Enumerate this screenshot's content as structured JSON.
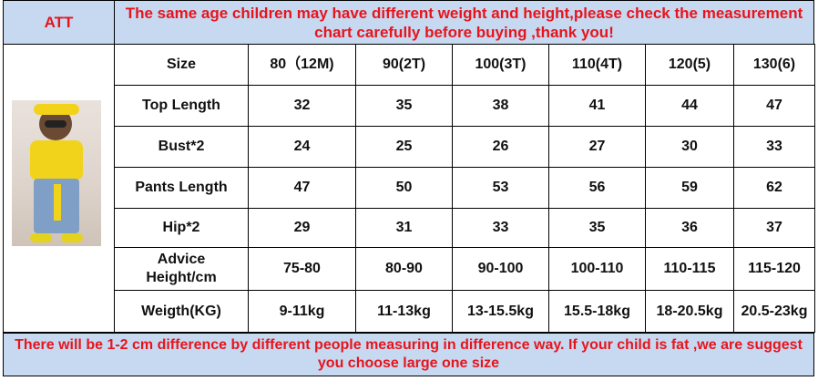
{
  "header": {
    "brand": "ATT",
    "notice": "The same age children may have different weight and height,please check the measurement chart carefully before buying ,thank you!"
  },
  "table": {
    "rows": [
      [
        "Size",
        "80（12M)",
        "90(2T)",
        "100(3T)",
        "110(4T)",
        "120(5)",
        "130(6)"
      ],
      [
        "Top Length",
        "32",
        "35",
        "38",
        "41",
        "44",
        "47"
      ],
      [
        "Bust*2",
        "24",
        "25",
        "26",
        "27",
        "30",
        "33"
      ],
      [
        "Pants Length",
        "47",
        "50",
        "53",
        "56",
        "59",
        "62"
      ],
      [
        "Hip*2",
        "29",
        "31",
        "33",
        "35",
        "36",
        "37"
      ],
      [
        "Advice\nHeight/cm",
        "75-80",
        "80-90",
        "90-100",
        "100-110",
        "110-115",
        "115-120"
      ],
      [
        "Weigth(KG)",
        "9-11kg",
        "11-13kg",
        "13-15.5kg",
        "15.5-18kg",
        "18-20.5kg",
        "20.5-23kg"
      ]
    ]
  },
  "footer": {
    "notice": "There will be 1-2 cm difference by different people measuring in difference way. If your child is fat ,we are suggest you choose large one size"
  }
}
